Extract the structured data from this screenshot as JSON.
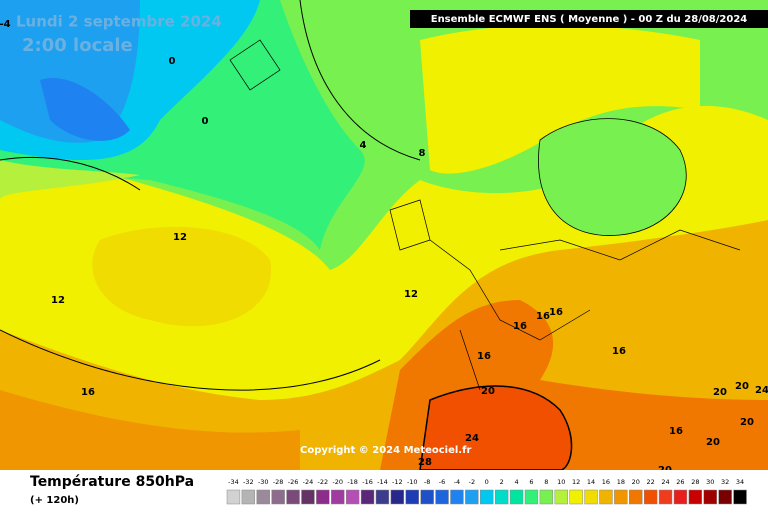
{
  "header": {
    "date": "Lundi 2 septembre 2024",
    "time": "2:00 locale",
    "model": "Ensemble ECMWF ENS  ( Moyenne )  -  00 Z du 28/08/2024",
    "copyright": "Copyright © 2024 Meteociel.fr"
  },
  "footer": {
    "title": "Température 850hPa",
    "lead": "(+ 120h)"
  },
  "contour_labels": [
    -4,
    0,
    0,
    4,
    8,
    12,
    12,
    12,
    16,
    16,
    16,
    16,
    16,
    16,
    20,
    20,
    20,
    20,
    20,
    24,
    24,
    28,
    20,
    16
  ],
  "colorbar": {
    "values": [
      -34,
      -32,
      -30,
      -28,
      -26,
      -24,
      -22,
      -20,
      -18,
      -16,
      -14,
      -12,
      -10,
      -8,
      -6,
      -4,
      -2,
      0,
      2,
      4,
      6,
      8,
      10,
      12,
      14,
      16,
      18,
      20,
      22,
      24,
      26,
      28,
      30,
      32,
      34
    ],
    "colors": [
      "#d2d2d2",
      "#b4b4b4",
      "#9a8a9a",
      "#8c6e8c",
      "#7a4a7a",
      "#643264",
      "#8c2d8c",
      "#a03ca0",
      "#b450b4",
      "#5a2878",
      "#3c3c8c",
      "#28288c",
      "#1e3cb4",
      "#1e50c8",
      "#1e64dc",
      "#1e82f0",
      "#1ea0f0",
      "#00c8f0",
      "#00dcc8",
      "#00e6a0",
      "#32f078",
      "#78f050",
      "#b4f03c",
      "#f0f000",
      "#f0dc00",
      "#f0b400",
      "#f09600",
      "#f07800",
      "#f05000",
      "#f03c1e",
      "#e61e1e",
      "#c80000",
      "#a00000",
      "#780000",
      "#000000"
    ]
  }
}
